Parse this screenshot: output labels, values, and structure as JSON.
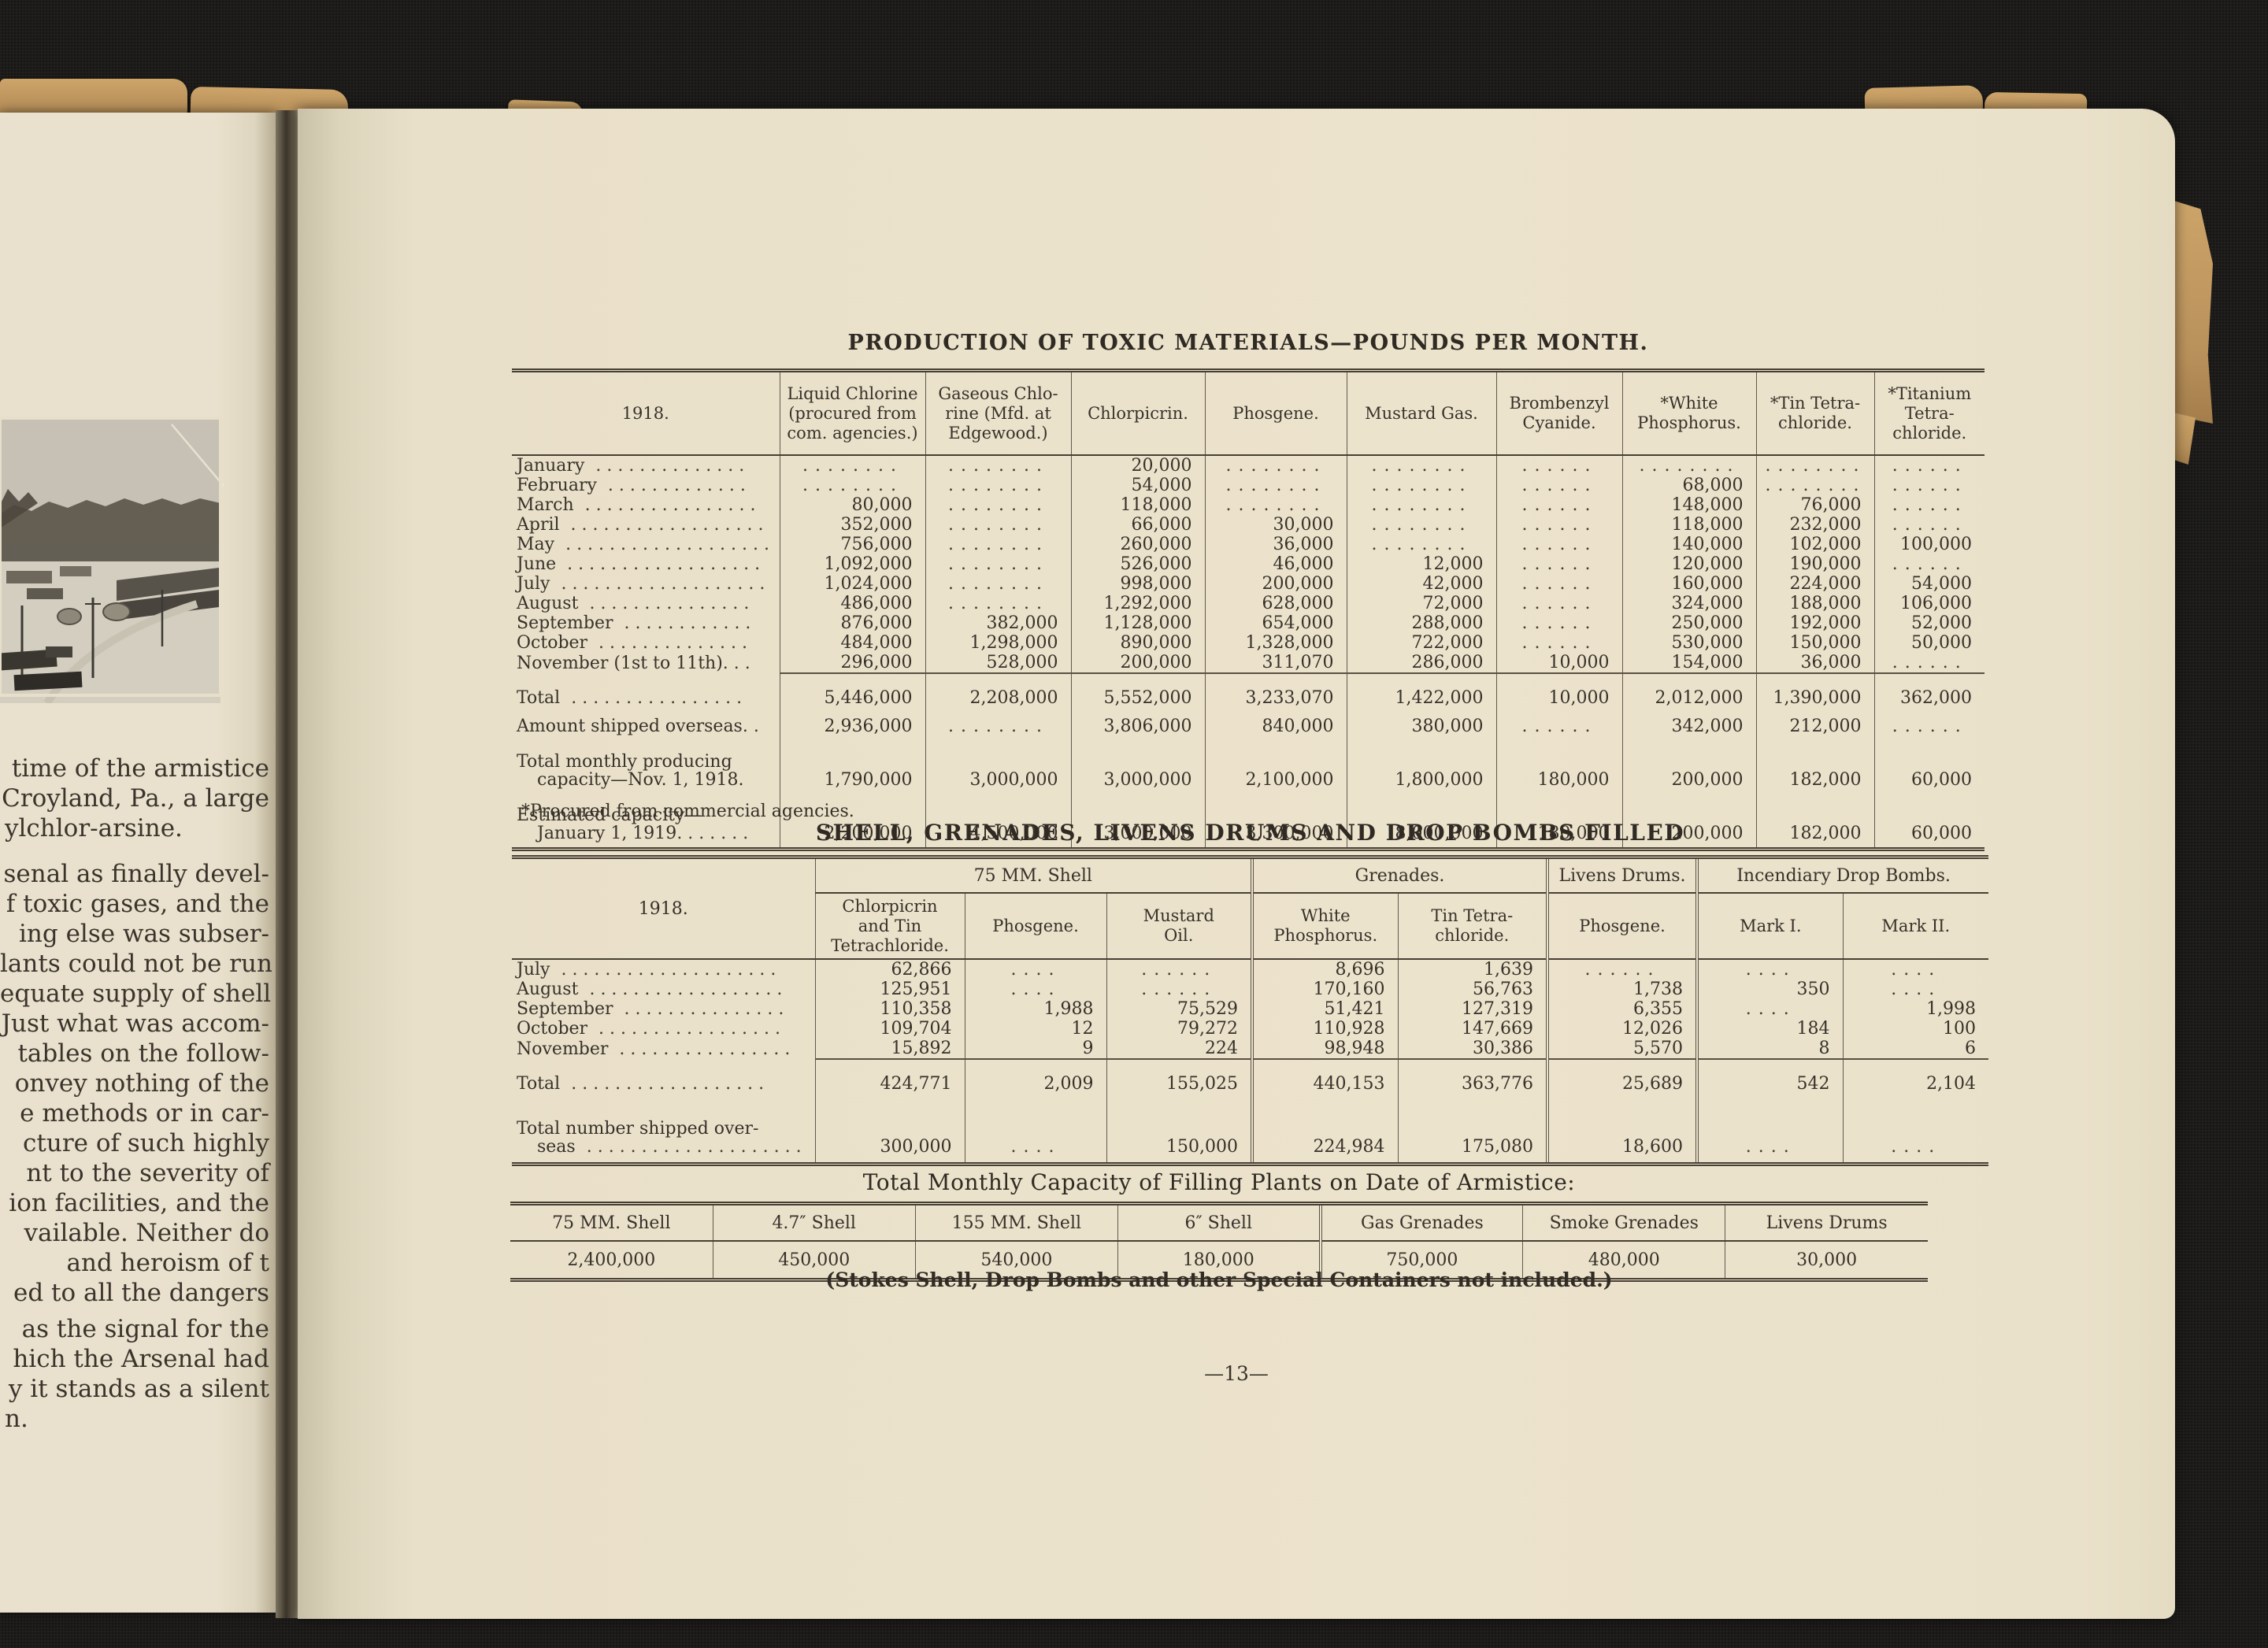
{
  "page": {
    "number": "—13—"
  },
  "left_page": {
    "photo": "arsenal-grounds-aerial-photograph",
    "para1": [
      "time of the armistice",
      "Croyland, Pa., a large",
      "ylchlor-arsine."
    ],
    "para2": [
      "senal as finally devel-",
      "f toxic gases, and the",
      "ing else was subser-",
      "lants could not be run",
      "equate supply of shell",
      "Just what was accom-",
      "tables on the follow-",
      "onvey nothing of the",
      "e methods or in car-",
      "cture of such highly",
      "nt to the severity of",
      "ion facilities, and the",
      "vailable.  Neither do",
      "and heroism of t",
      "ed to all the dangers"
    ],
    "para3": [
      "as the signal for the",
      "hich the Arsenal had",
      "y it stands as a silent",
      "n."
    ]
  },
  "table1": {
    "title": "PRODUCTION OF TOXIC MATERIALS—POUNDS PER MONTH.",
    "col_headers": [
      "1918.",
      "Liquid Chlorine\n(procured from\ncom. agencies.)",
      "Gaseous Chlo-\nrine (Mfd. at\nEdgewood.)",
      "Chlorpicrin.",
      "Phosgene.",
      "Mustard Gas.",
      "Brombenzyl\nCyanide.",
      "*White\nPhosphorus.",
      "*Tin Tetra-\nchloride.",
      "*Titanium\nTetra-\nchloride."
    ],
    "rows": [
      [
        "January ..............",
        "........",
        "........",
        "20,000",
        "........",
        "........",
        "......",
        "........",
        "........",
        "......"
      ],
      [
        "February .............",
        "........",
        "........",
        "54,000",
        "........",
        "........",
        "......",
        "68,000",
        "........",
        "......"
      ],
      [
        "March ................",
        "80,000",
        "........",
        "118,000",
        "........",
        "........",
        "......",
        "148,000",
        "76,000",
        "......"
      ],
      [
        "April ..................",
        "352,000",
        "........",
        "66,000",
        "30,000",
        "........",
        "......",
        "118,000",
        "232,000",
        "......"
      ],
      [
        "May ...................",
        "756,000",
        "........",
        "260,000",
        "36,000",
        "........",
        "......",
        "140,000",
        "102,000",
        "100,000"
      ],
      [
        "June ..................",
        "1,092,000",
        "........",
        "526,000",
        "46,000",
        "12,000",
        "......",
        "120,000",
        "190,000",
        "......"
      ],
      [
        "July ...................",
        "1,024,000",
        "........",
        "998,000",
        "200,000",
        "42,000",
        "......",
        "160,000",
        "224,000",
        "54,000"
      ],
      [
        "August ...............",
        "486,000",
        "........",
        "1,292,000",
        "628,000",
        "72,000",
        "......",
        "324,000",
        "188,000",
        "106,000"
      ],
      [
        "September ............",
        "876,000",
        "382,000",
        "1,128,000",
        "654,000",
        "288,000",
        "......",
        "250,000",
        "192,000",
        "52,000"
      ],
      [
        "October ..............",
        "484,000",
        "1,298,000",
        "890,000",
        "1,328,000",
        "722,000",
        "......",
        "530,000",
        "150,000",
        "50,000"
      ],
      [
        "November (1st to 11th)...",
        "296,000",
        "528,000",
        "200,000",
        "311,070",
        "286,000",
        "10,000",
        "154,000",
        "36,000",
        "......"
      ]
    ],
    "summary": [
      {
        "label": [
          "Total ................"
        ],
        "values": [
          "5,446,000",
          "2,208,000",
          "5,552,000",
          "3,233,070",
          "1,422,000",
          "10,000",
          "2,012,000",
          "1,390,000",
          "362,000"
        ]
      },
      {
        "label": [
          "Amount shipped overseas.."
        ],
        "values": [
          "2,936,000",
          "........",
          "3,806,000",
          "840,000",
          "380,000",
          "......",
          "342,000",
          "212,000",
          "......"
        ]
      },
      {
        "label": [
          "Total monthly producing",
          "capacity—Nov. 1, 1918."
        ],
        "values": [
          "1,790,000",
          "3,000,000",
          "3,000,000",
          "2,100,000",
          "1,800,000",
          "180,000",
          "200,000",
          "182,000",
          "60,000"
        ]
      },
      {
        "label": [
          "Estimated capacity—",
          "January 1, 1919......."
        ],
        "values": [
          "2,200,000",
          "4,500,000",
          "3,000,000",
          "3,300,000",
          "8,000,000",
          "180,000",
          "200,000",
          "182,000",
          "60,000"
        ]
      }
    ],
    "footnote": "*Procured from commercial agencies."
  },
  "table2": {
    "title": "SHELL,  GRENADES,  LIVENS DRUMS AND DROP BOMBS FILLED",
    "col_1918": "1918.",
    "groups": [
      {
        "label": "75 MM. Shell"
      },
      {
        "label": "Grenades."
      },
      {
        "label": "Livens Drums."
      },
      {
        "label": "Incendiary Drop Bombs."
      }
    ],
    "sub_headers": [
      "Chlorpicrin\nand Tin\nTetrachloride.",
      "Phosgene.",
      "Mustard\nOil.",
      "White\nPhosphorus.",
      "Tin Tetra-\nchloride.",
      "Phosgene.",
      "Mark I.",
      "Mark II."
    ],
    "rows": [
      [
        "July ....................",
        "62,866",
        "....",
        "......",
        "8,696",
        "1,639",
        "......",
        "....",
        "...."
      ],
      [
        "August ..................",
        "125,951",
        "....",
        "......",
        "170,160",
        "56,763",
        "1,738",
        "350",
        "...."
      ],
      [
        "September ...............",
        "110,358",
        "1,988",
        "75,529",
        "51,421",
        "127,319",
        "6,355",
        "....",
        "1,998"
      ],
      [
        "October .................",
        "109,704",
        "12",
        "79,272",
        "110,928",
        "147,669",
        "12,026",
        "184",
        "100"
      ],
      [
        "November ................",
        "15,892",
        "9",
        "224",
        "98,948",
        "30,386",
        "5,570",
        "8",
        "6"
      ]
    ],
    "summary": [
      {
        "label": [
          "Total .................."
        ],
        "values": [
          "424,771",
          "2,009",
          "155,025",
          "440,153",
          "363,776",
          "25,689",
          "542",
          "2,104"
        ]
      },
      {
        "label": [
          "Total number shipped over-",
          "seas ...................."
        ],
        "values": [
          "300,000",
          "....",
          "150,000",
          "224,984",
          "175,080",
          "18,600",
          "....",
          "...."
        ]
      }
    ]
  },
  "table3": {
    "title": "Total  Monthly  Capacity  of  Filling  Plants  on  Date  of  Armistice:",
    "headers": [
      "75 MM. Shell",
      "4.7″ Shell",
      "155 MM. Shell",
      "6″ Shell",
      "Gas Grenades",
      "Smoke Grenades",
      "Livens Drums"
    ],
    "values": [
      "2,400,000",
      "450,000",
      "540,000",
      "180,000",
      "750,000",
      "480,000",
      "30,000"
    ],
    "caption": "(Stokes Shell, Drop Bombs and other Special Containers not included.)"
  }
}
